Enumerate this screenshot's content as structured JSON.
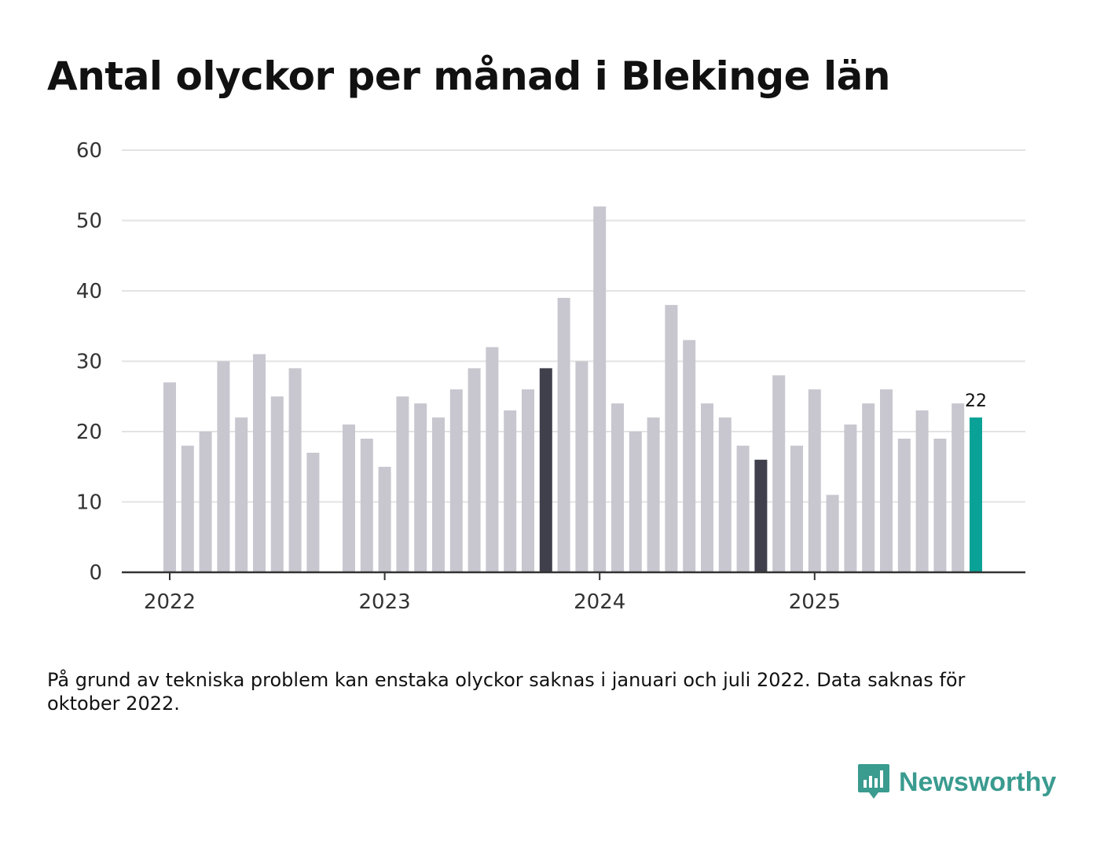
{
  "title": "Antal olyckor per månad i Blekinge län",
  "footnote": "På grund av tekniska problem kan enstaka olyckor saknas i januari och juli 2022. Data saknas för oktober 2022.",
  "brand": {
    "name": "Newsworthy",
    "color": "#3a9b8f"
  },
  "colors": {
    "default_bar": "#c8c7cf",
    "highlight_bar": "#40404d",
    "latest_bar": "#0aa296",
    "grid": "#e3e3e3",
    "axis": "#333333"
  },
  "chart_data": {
    "type": "bar",
    "title": "Antal olyckor per månad i Blekinge län",
    "xlabel": "",
    "ylabel": "",
    "ylim": [
      0,
      60
    ],
    "yticks": [
      0,
      10,
      20,
      30,
      40,
      50,
      60
    ],
    "year_labels": [
      {
        "label": "2022",
        "month_index": 0
      },
      {
        "label": "2023",
        "month_index": 12
      },
      {
        "label": "2024",
        "month_index": 24
      },
      {
        "label": "2025",
        "month_index": 36
      }
    ],
    "series": [
      {
        "name": "Olyckor",
        "values": [
          27,
          18,
          20,
          30,
          22,
          31,
          25,
          29,
          17,
          null,
          21,
          19,
          15,
          25,
          24,
          22,
          26,
          29,
          32,
          23,
          26,
          29,
          39,
          30,
          52,
          24,
          20,
          22,
          38,
          33,
          24,
          22,
          18,
          16,
          28,
          18,
          26,
          11,
          21,
          24,
          26,
          19,
          23,
          19,
          24,
          22
        ],
        "highlight": [
          {
            "month_index": 21,
            "role": "highlight"
          },
          {
            "month_index": 33,
            "role": "highlight"
          },
          {
            "month_index": 45,
            "role": "latest"
          }
        ]
      }
    ],
    "annotations": [
      {
        "month_index": 45,
        "text": "22"
      }
    ]
  }
}
